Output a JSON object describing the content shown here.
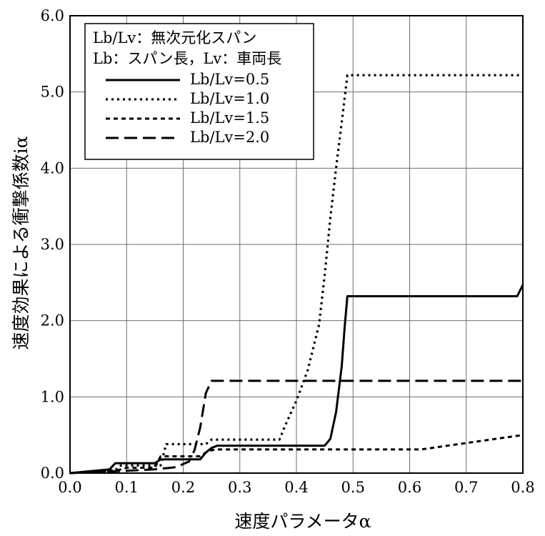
{
  "chart_data": {
    "type": "line",
    "xlabel": "速度パラメータα",
    "ylabel": "速度効果による衝撃係数iα",
    "xlim": [
      0.0,
      0.8
    ],
    "ylim": [
      0.0,
      6.0
    ],
    "xticks": [
      "0.0",
      "0.1",
      "0.2",
      "0.3",
      "0.4",
      "0.5",
      "0.6",
      "0.7",
      "0.8"
    ],
    "yticks": [
      "0.0",
      "1.0",
      "2.0",
      "3.0",
      "4.0",
      "5.0",
      "6.0"
    ],
    "grid": true,
    "legend_position": "top-left",
    "legend_header": [
      "Lb/Lv：無次元化スパン",
      "Lb：スパン長，Lv：車両長"
    ],
    "series": [
      {
        "name": "Lb/Lv=0.5",
        "style": "solid",
        "x": [
          0.0,
          0.07,
          0.08,
          0.15,
          0.16,
          0.23,
          0.24,
          0.25,
          0.26,
          0.45,
          0.46,
          0.47,
          0.48,
          0.485,
          0.49,
          0.79,
          0.8
        ],
        "y": [
          0.0,
          0.05,
          0.13,
          0.13,
          0.18,
          0.18,
          0.27,
          0.33,
          0.36,
          0.36,
          0.45,
          0.8,
          1.4,
          1.9,
          2.32,
          2.32,
          2.47
        ]
      },
      {
        "name": "Lb/Lv=1.0",
        "style": "dotted",
        "x": [
          0.0,
          0.08,
          0.09,
          0.16,
          0.17,
          0.24,
          0.25,
          0.37,
          0.38,
          0.4,
          0.42,
          0.44,
          0.45,
          0.46,
          0.47,
          0.48,
          0.49,
          0.8
        ],
        "y": [
          0.0,
          0.04,
          0.1,
          0.1,
          0.38,
          0.38,
          0.44,
          0.44,
          0.62,
          0.95,
          1.35,
          1.95,
          2.6,
          3.35,
          4.0,
          4.6,
          5.22,
          5.22
        ]
      },
      {
        "name": "Lb/Lv=1.5",
        "style": "short-dash",
        "x": [
          0.0,
          0.08,
          0.1,
          0.15,
          0.16,
          0.23,
          0.24,
          0.25,
          0.26,
          0.62,
          0.8
        ],
        "y": [
          0.0,
          0.03,
          0.07,
          0.07,
          0.22,
          0.22,
          0.27,
          0.3,
          0.31,
          0.31,
          0.5
        ]
      },
      {
        "name": "Lb/Lv=2.0",
        "style": "long-dash",
        "x": [
          0.0,
          0.1,
          0.15,
          0.19,
          0.2,
          0.21,
          0.22,
          0.23,
          0.24,
          0.25,
          0.8
        ],
        "y": [
          0.0,
          0.03,
          0.05,
          0.08,
          0.12,
          0.15,
          0.3,
          0.6,
          1.05,
          1.21,
          1.21
        ]
      }
    ]
  }
}
